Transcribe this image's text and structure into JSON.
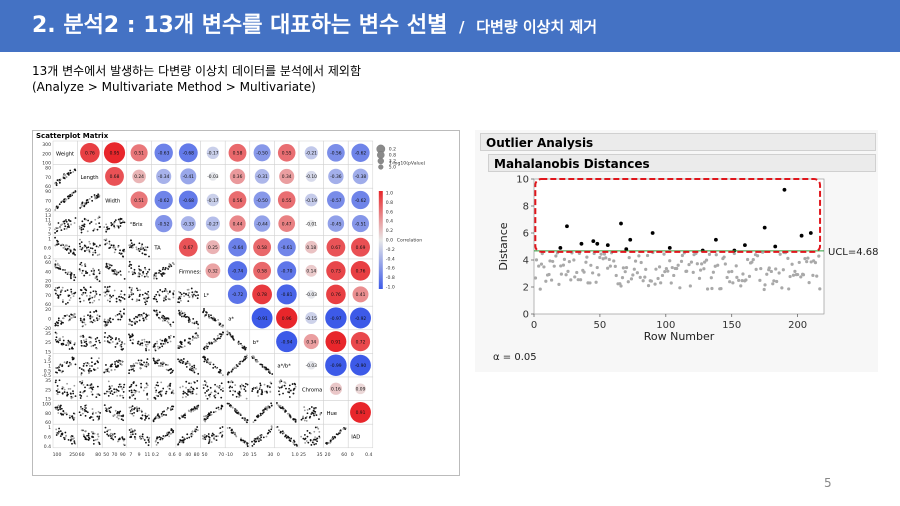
{
  "slide": {
    "title": "2. 분석2 : 13개 변수를 대표하는 변수 선별",
    "title_sep": "/",
    "subtitle": "다변량 이상치 제거",
    "desc1": "13개 변수에서 발생하는 다변량 이상치 데이터를 분석에서 제외함",
    "desc2": "(Analyze  >  Multivariate  Method  >  Multivariate)",
    "page_number": "5",
    "banner_color": "#4472c4"
  },
  "scatter_matrix": {
    "title": "Scatterplot Matrix",
    "variables": [
      "Weight",
      "Length",
      "Width",
      "°Brix",
      "TA",
      "Firmness",
      "L*",
      "a*",
      "b*",
      "a*/b*",
      "Chroma",
      "Hue",
      "IAD"
    ],
    "correlations": [
      [
        0.76,
        0.95,
        0.51,
        -0.63,
        -0.68,
        -0.17,
        0.58,
        -0.5,
        0.55,
        -0.21,
        -0.56,
        -0.62
      ],
      [
        0.68,
        0.24,
        -0.34,
        -0.41,
        -0.03,
        0.36,
        -0.31,
        0.34,
        -0.1,
        -0.36,
        -0.38
      ],
      [
        0.51,
        -0.62,
        -0.68,
        -0.17,
        0.56,
        -0.5,
        0.55,
        -0.19,
        -0.57,
        -0.62
      ],
      [
        -0.52,
        -0.33,
        -0.27,
        0.44,
        -0.44,
        0.47,
        -0.01,
        -0.45,
        -0.51
      ],
      [
        0.67,
        0.25,
        -0.64,
        0.58,
        -0.61,
        0.18,
        0.67,
        0.69
      ],
      [
        0.32,
        -0.74,
        0.58,
        -0.7,
        0.14,
        0.73,
        0.76
      ],
      [
        -0.72,
        0.78,
        -0.81,
        -0.03,
        0.76,
        0.41
      ],
      [
        -0.91,
        0.96,
        -0.15,
        -0.97,
        -0.92
      ],
      [
        -0.94,
        0.34,
        0.91,
        0.72
      ],
      [
        -0.03,
        -0.99,
        -0.9
      ],
      [
        0.16,
        0.09
      ],
      [
        0.91
      ]
    ],
    "legend_pvalue": {
      "label": "1-log10(pValue)",
      "values": [
        "0.2",
        "0.8",
        "3.2",
        "5.0"
      ]
    },
    "legend_corr": {
      "label": "Correlation",
      "values": [
        "1.0",
        "0.8",
        "0.6",
        "0.4",
        "0.2",
        "0.0",
        "-0.2",
        "-0.4",
        "-0.6",
        "-0.8",
        "-1.0"
      ]
    },
    "y_ticks": [
      [
        "300",
        "200",
        "100"
      ],
      [
        "80",
        "70",
        "60"
      ],
      [
        "90",
        "70",
        "50"
      ],
      [
        "13",
        "11",
        "9",
        "7",
        "5"
      ],
      [
        "1",
        "0.6",
        "0.2"
      ],
      [
        "60",
        "40",
        "20"
      ],
      [
        "80",
        "70",
        "60"
      ],
      [
        "20",
        "0",
        "-20"
      ],
      [
        "35",
        "25",
        "15"
      ],
      [
        "2",
        "1.5",
        "1",
        "0.5",
        "-0.5"
      ],
      [
        "35",
        "25",
        "15"
      ],
      [
        "100",
        "80",
        "60"
      ],
      [
        "1",
        "0.6",
        "0.4"
      ]
    ],
    "x_ticks": [
      [
        "100",
        "250"
      ],
      [
        "60",
        "80"
      ],
      [
        "50",
        "70",
        "90"
      ],
      [
        "7",
        "9",
        "11"
      ],
      [
        "0.2",
        "0.6"
      ],
      [
        "0",
        "40",
        "80"
      ],
      [
        "50",
        "70"
      ],
      [
        "-10",
        "20"
      ],
      [
        "15",
        "30"
      ],
      [
        "0",
        "1.0"
      ],
      [
        "25",
        "35"
      ],
      [
        "20",
        "60"
      ],
      [
        "0",
        "0.4"
      ]
    ],
    "colors": {
      "positive": "#e8262b",
      "negative": "#3d5ae8",
      "neutral": "#c8c8c8"
    }
  },
  "outlier": {
    "header": "Outlier Analysis",
    "subheader": "Mahalanobis Distances",
    "ylabel": "Distance",
    "xlabel": "Row Number",
    "ucl_label": "UCL=4.68",
    "alpha": "α = 0.05",
    "x_ticks": [
      "0",
      "50",
      "100",
      "150",
      "200"
    ],
    "y_ticks": [
      "0",
      "2",
      "4",
      "6",
      "8",
      "10"
    ]
  },
  "chart_data": {
    "type": "scatter",
    "title": "Mahalanobis Distances",
    "xlabel": "Row Number",
    "ylabel": "Distance",
    "xlim": [
      0,
      220
    ],
    "ylim": [
      0,
      10
    ],
    "ucl": 4.68,
    "outliers": {
      "x": [
        20,
        25,
        36,
        45,
        48,
        56,
        66,
        70,
        73,
        90,
        103,
        128,
        138,
        152,
        160,
        175,
        183,
        190,
        203,
        210
      ],
      "y": [
        4.9,
        6.5,
        5.2,
        5.4,
        5.2,
        5.1,
        6.7,
        4.8,
        5.5,
        6.0,
        4.9,
        4.7,
        5.5,
        4.7,
        5.1,
        6.4,
        5.0,
        9.2,
        5.8,
        6.0
      ]
    },
    "normal": {
      "count": 194,
      "min": 1.8,
      "max": 4.6
    }
  }
}
